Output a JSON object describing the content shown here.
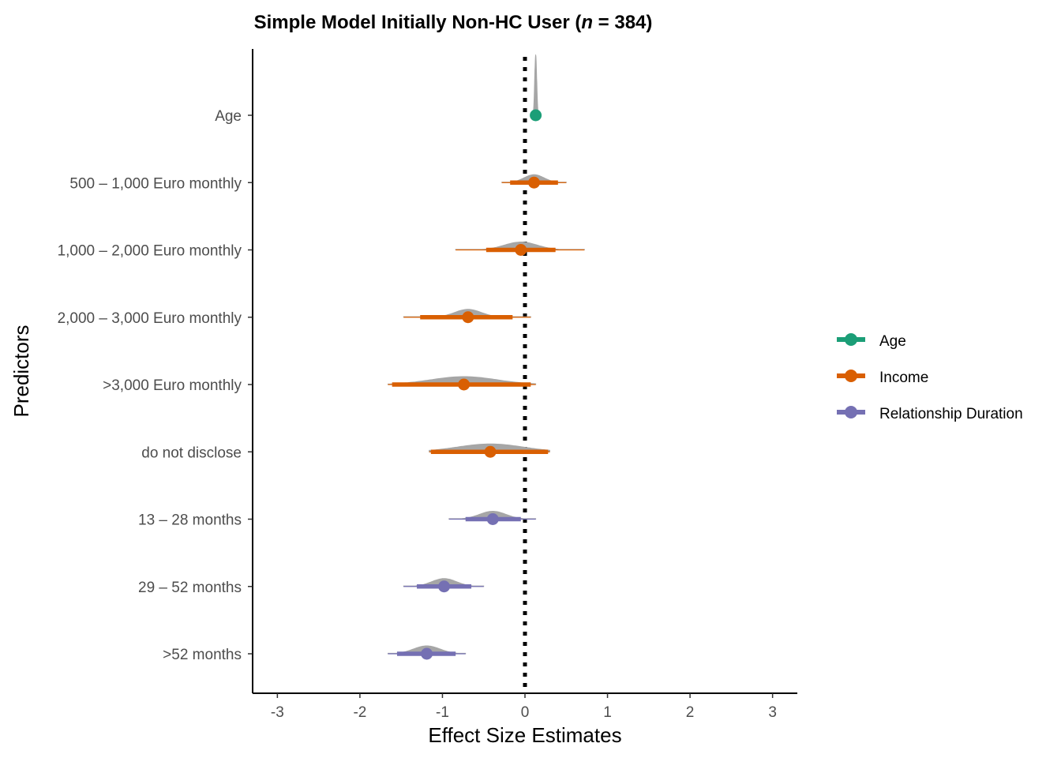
{
  "chart_data": {
    "type": "forest",
    "title_prefix": "Simple Model Initially Non-HC User (",
    "title_n_symbol": "n",
    "title_suffix": " = 384)",
    "xlabel": "Effect Size Estimates",
    "ylabel": "Predictors",
    "xlim": [
      -3.3,
      3.3
    ],
    "xticks": [
      -3,
      -2,
      -1,
      0,
      1,
      2,
      3
    ],
    "xtick_labels": [
      "-3",
      "-2",
      "-1",
      "0",
      "1",
      "2",
      "3"
    ],
    "reference_line": 0,
    "grid": false,
    "legend_position": "right",
    "colors": {
      "Age": "#1b9e77",
      "Income": "#d95f02",
      "Relationship Duration": "#7570b3",
      "density": "#a6a6a6",
      "reference": "#000000"
    },
    "legend": [
      "Age",
      "Income",
      "Relationship Duration"
    ],
    "predictors": [
      {
        "label": "Age",
        "group": "Age",
        "estimate": 0.13,
        "ci_inner": [
          0.11,
          0.15
        ],
        "ci_outer": [
          0.1,
          0.16
        ],
        "density_sd": 0.012
      },
      {
        "label": "500 – 1,000 Euro monthly",
        "group": "Income",
        "estimate": 0.11,
        "ci_inner": [
          -0.18,
          0.4
        ],
        "ci_outer": [
          -0.28,
          0.5
        ],
        "density_sd": 0.12
      },
      {
        "label": "1,000 – 2,000 Euro monthly",
        "group": "Income",
        "estimate": -0.05,
        "ci_inner": [
          -0.47,
          0.37
        ],
        "ci_outer": [
          -0.84,
          0.72
        ],
        "density_sd": 0.2
      },
      {
        "label": "2,000 – 3,000 Euro monthly",
        "group": "Income",
        "estimate": -0.69,
        "ci_inner": [
          -1.27,
          -0.15
        ],
        "ci_outer": [
          -1.47,
          0.07
        ],
        "density_sd": 0.16
      },
      {
        "label": ">3,000 Euro monthly",
        "group": "Income",
        "estimate": -0.74,
        "ci_inner": [
          -1.61,
          0.07
        ],
        "ci_outer": [
          -1.66,
          0.13
        ],
        "density_sd": 0.4
      },
      {
        "label": "do not disclose",
        "group": "Income",
        "estimate": -0.42,
        "ci_inner": [
          -1.14,
          0.28
        ],
        "ci_outer": [
          -1.16,
          0.3
        ],
        "density_sd": 0.4
      },
      {
        "label": "13 – 28 months",
        "group": "Relationship Duration",
        "estimate": -0.39,
        "ci_inner": [
          -0.72,
          -0.05
        ],
        "ci_outer": [
          -0.92,
          0.13
        ],
        "density_sd": 0.16
      },
      {
        "label": "29 – 52 months",
        "group": "Relationship Duration",
        "estimate": -0.98,
        "ci_inner": [
          -1.31,
          -0.65
        ],
        "ci_outer": [
          -1.47,
          -0.5
        ],
        "density_sd": 0.15
      },
      {
        "label": ">52 months",
        "group": "Relationship Duration",
        "estimate": -1.19,
        "ci_inner": [
          -1.55,
          -0.84
        ],
        "ci_outer": [
          -1.66,
          -0.72
        ],
        "density_sd": 0.16
      }
    ]
  }
}
